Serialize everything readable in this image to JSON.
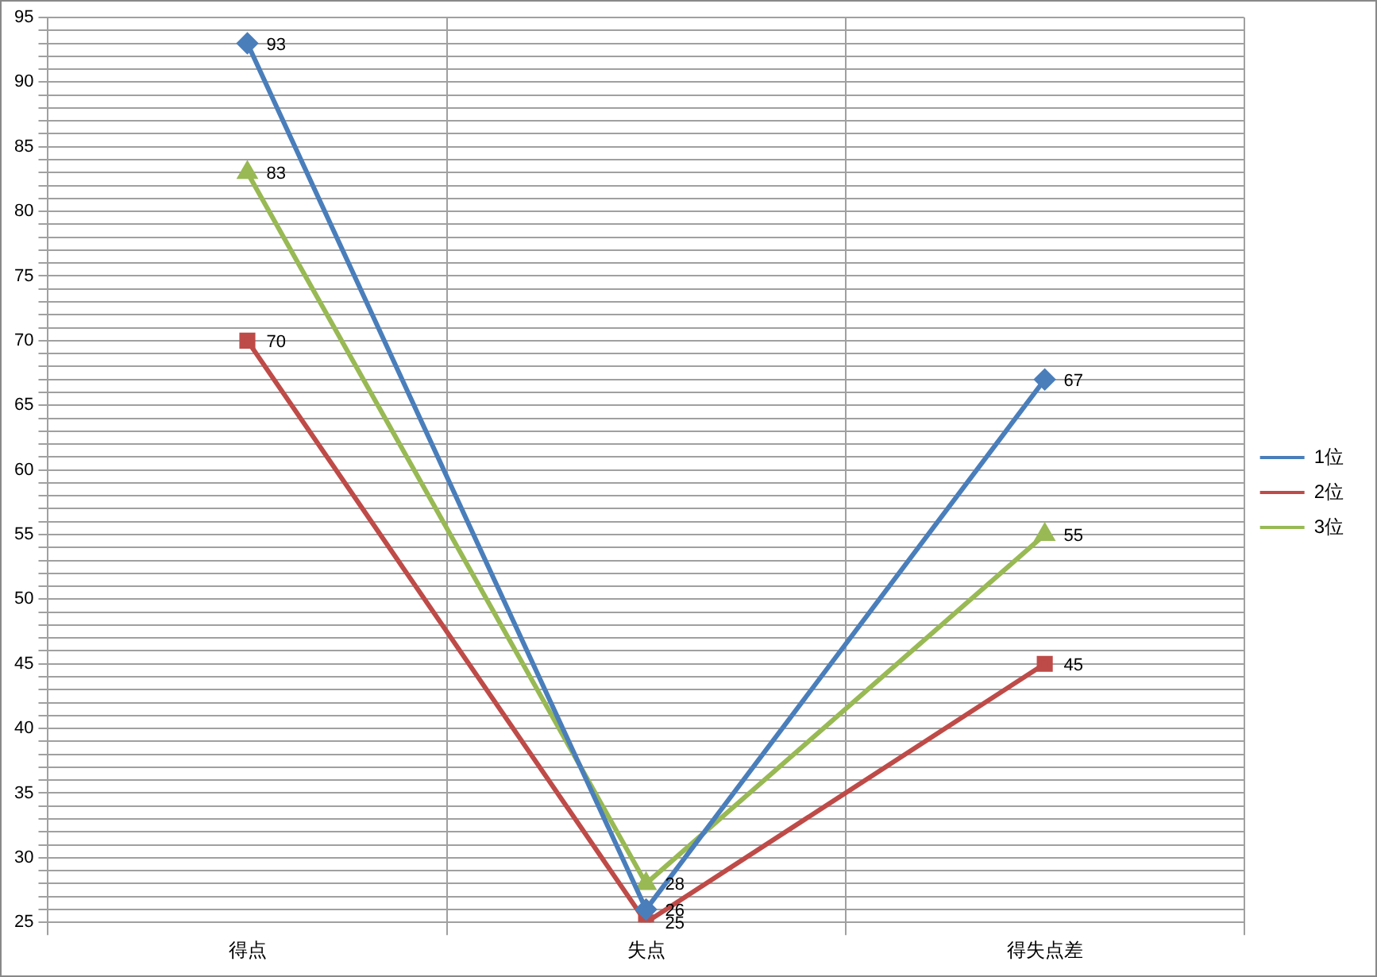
{
  "chart_data": {
    "type": "line",
    "categories": [
      "得点",
      "失点",
      "得失点差"
    ],
    "series": [
      {
        "name": "1位",
        "color": "#4a7ebb",
        "values": [
          93,
          26,
          67
        ],
        "marker": "diamond"
      },
      {
        "name": "2位",
        "color": "#be4b48",
        "values": [
          70,
          25,
          45
        ],
        "marker": "square"
      },
      {
        "name": "3位",
        "color": "#98b954",
        "values": [
          83,
          28,
          55
        ],
        "marker": "triangle"
      }
    ],
    "ylim": [
      25,
      95
    ],
    "yticks": [
      25,
      {
        "value": 26,
        "label": null
      },
      {
        "value": 27,
        "label": null
      },
      {
        "value": 28,
        "label": null
      },
      {
        "value": 29,
        "label": null
      },
      30,
      {
        "value": 31,
        "label": null
      },
      {
        "value": 32,
        "label": null
      },
      {
        "value": 33,
        "label": null
      },
      {
        "value": 34,
        "label": null
      },
      35,
      {
        "value": 36,
        "label": null
      },
      {
        "value": 37,
        "label": null
      },
      {
        "value": 38,
        "label": null
      },
      {
        "value": 39,
        "label": null
      },
      40,
      {
        "value": 41,
        "label": null
      },
      {
        "value": 42,
        "label": null
      },
      {
        "value": 43,
        "label": null
      },
      {
        "value": 44,
        "label": null
      },
      45,
      {
        "value": 46,
        "label": null
      },
      {
        "value": 47,
        "label": null
      },
      {
        "value": 48,
        "label": null
      },
      {
        "value": 49,
        "label": null
      },
      50,
      {
        "value": 51,
        "label": null
      },
      {
        "value": 52,
        "label": null
      },
      {
        "value": 53,
        "label": null
      },
      {
        "value": 54,
        "label": null
      },
      55,
      {
        "value": 56,
        "label": null
      },
      {
        "value": 57,
        "label": null
      },
      {
        "value": 58,
        "label": null
      },
      {
        "value": 59,
        "label": null
      },
      60,
      {
        "value": 61,
        "label": null
      },
      {
        "value": 62,
        "label": null
      },
      {
        "value": 63,
        "label": null
      },
      {
        "value": 64,
        "label": null
      },
      65,
      {
        "value": 66,
        "label": null
      },
      {
        "value": 67,
        "label": null
      },
      {
        "value": 68,
        "label": null
      },
      {
        "value": 69,
        "label": null
      },
      70,
      {
        "value": 71,
        "label": null
      },
      {
        "value": 72,
        "label": null
      },
      {
        "value": 73,
        "label": null
      },
      {
        "value": 74,
        "label": null
      },
      75,
      {
        "value": 76,
        "label": null
      },
      {
        "value": 77,
        "label": null
      },
      {
        "value": 78,
        "label": null
      },
      {
        "value": 79,
        "label": null
      },
      80,
      {
        "value": 81,
        "label": null
      },
      {
        "value": 82,
        "label": null
      },
      {
        "value": 83,
        "label": null
      },
      {
        "value": 84,
        "label": null
      },
      85,
      {
        "value": 86,
        "label": null
      },
      {
        "value": 87,
        "label": null
      },
      {
        "value": 88,
        "label": null
      },
      {
        "value": 89,
        "label": null
      },
      90,
      {
        "value": 91,
        "label": null
      },
      {
        "value": 92,
        "label": null
      },
      {
        "value": 93,
        "label": null
      },
      {
        "value": 94,
        "label": null
      },
      95
    ],
    "grid": true,
    "legend": "right",
    "data_labels": true,
    "line_style": "solid"
  }
}
